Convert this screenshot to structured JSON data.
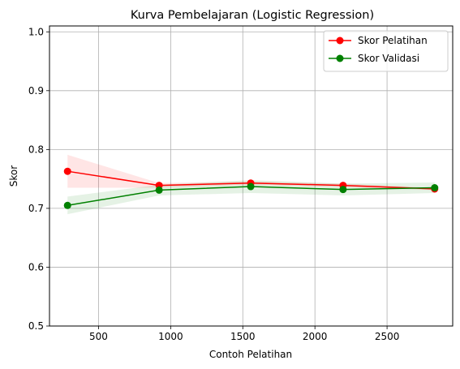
{
  "chart_data": {
    "type": "line",
    "title": "Kurva Pembelajaran (Logistic Regression)",
    "xlabel": "Contoh Pelatihan",
    "ylabel": "Skor",
    "x": [
      285,
      920,
      1555,
      2195,
      2830
    ],
    "xlim": [
      160,
      2955
    ],
    "ylim": [
      0.5,
      1.01
    ],
    "xticks": [
      500,
      1000,
      1500,
      2000,
      2500
    ],
    "yticks": [
      0.5,
      0.6,
      0.7,
      0.8,
      0.9,
      1.0
    ],
    "grid": true,
    "legend_position": "top-right",
    "series": [
      {
        "name": "Skor Pelatihan",
        "color": "#ff0000",
        "band_color": "#ff0000",
        "values": [
          0.763,
          0.739,
          0.743,
          0.739,
          0.733
        ],
        "band_low": [
          0.735,
          0.735,
          0.74,
          0.736,
          0.731
        ],
        "band_high": [
          0.791,
          0.743,
          0.746,
          0.742,
          0.735
        ]
      },
      {
        "name": "Skor Validasi",
        "color": "#008000",
        "band_color": "#008000",
        "values": [
          0.705,
          0.731,
          0.737,
          0.732,
          0.735
        ],
        "band_low": [
          0.69,
          0.722,
          0.726,
          0.722,
          0.726
        ],
        "band_high": [
          0.72,
          0.74,
          0.748,
          0.742,
          0.744
        ]
      }
    ]
  }
}
